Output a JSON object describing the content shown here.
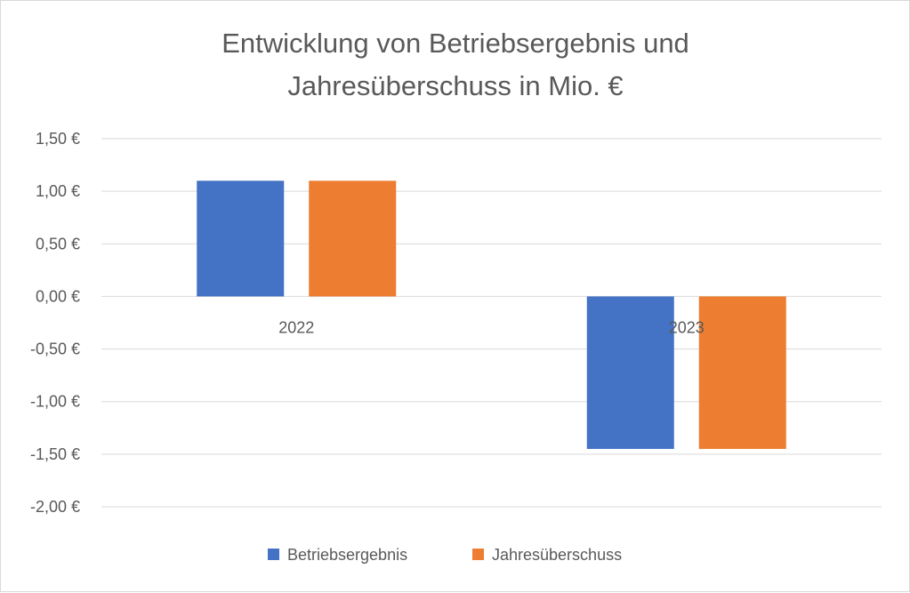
{
  "chart_data": {
    "type": "bar",
    "title_lines": [
      "Entwicklung von Betriebsergebnis und",
      "Jahresüberschuss in Mio. €"
    ],
    "categories": [
      "2022",
      "2023"
    ],
    "series": [
      {
        "name": "Betriebsergebnis",
        "values": [
          1.1,
          -1.45
        ],
        "color": "#4472C4"
      },
      {
        "name": "Jahresüberschuss",
        "values": [
          1.1,
          -1.45
        ],
        "color": "#ED7D31"
      }
    ],
    "y_ticks": [
      1.5,
      1.0,
      0.5,
      0.0,
      -0.5,
      -1.0,
      -1.5,
      -2.0
    ],
    "y_tick_labels": [
      "1,50 €",
      "1,00 €",
      "0,50 €",
      "0,00 €",
      "-0,50 €",
      "-1,00 €",
      "-1,50 €",
      "-2,00 €"
    ],
    "ylim": [
      -2.0,
      1.5
    ],
    "grid": true,
    "legend_position": "bottom"
  }
}
